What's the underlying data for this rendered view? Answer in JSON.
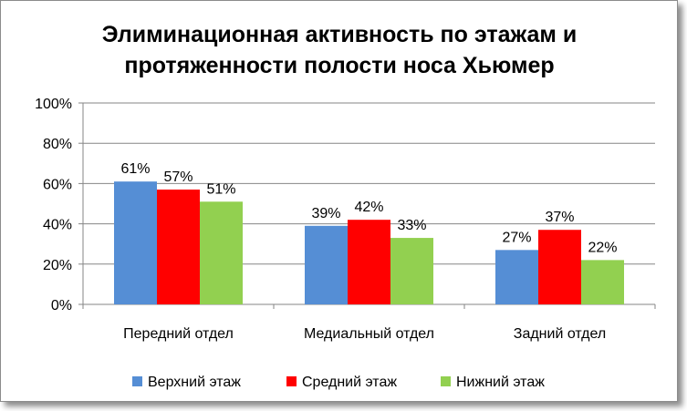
{
  "chart_data": {
    "type": "bar",
    "title_lines": [
      "Элиминационная активность по этажам и",
      "протяженности полости носа Хьюмер"
    ],
    "categories": [
      "Передний отдел",
      "Медиальный отдел",
      "Задний отдел"
    ],
    "series": [
      {
        "name": "Верхний этаж",
        "color": "#558ed5",
        "values": [
          61,
          39,
          27
        ],
        "labels": [
          "61%",
          "39%",
          "27%"
        ]
      },
      {
        "name": "Средний этаж",
        "color": "#ff0000",
        "values": [
          57,
          42,
          37
        ],
        "labels": [
          "57%",
          "42%",
          "37%"
        ]
      },
      {
        "name": "Нижний этаж",
        "color": "#92d050",
        "values": [
          51,
          33,
          22
        ],
        "labels": [
          "51%",
          "33%",
          "22%"
        ]
      }
    ],
    "ylim": [
      0,
      100
    ],
    "yticks": [
      0,
      20,
      40,
      60,
      80,
      100
    ],
    "ytick_labels": [
      "0%",
      "20%",
      "40%",
      "60%",
      "80%",
      "100%"
    ],
    "grid": true,
    "legend_position": "bottom",
    "xlabel": "",
    "ylabel": ""
  }
}
